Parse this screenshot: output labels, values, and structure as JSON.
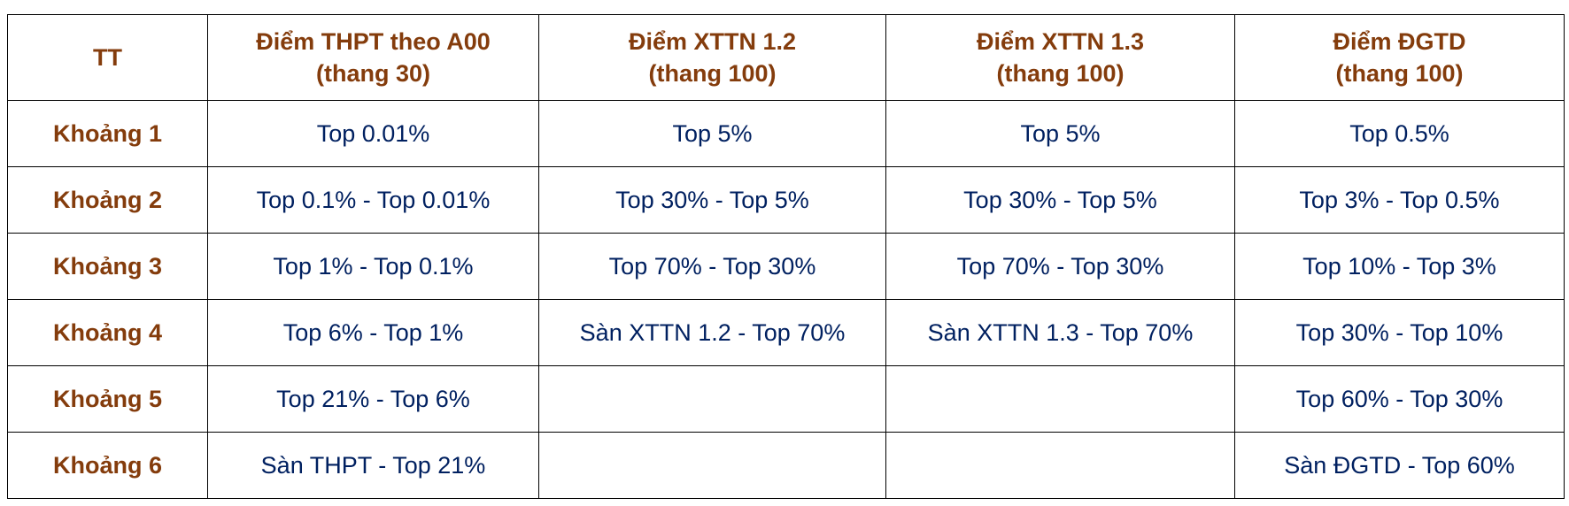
{
  "colors": {
    "header_text": "#843C0C",
    "body_text": "#002060",
    "border": "#000000"
  },
  "headers": [
    {
      "line1": "TT",
      "line2": ""
    },
    {
      "line1": "Điểm THPT theo A00",
      "line2": "(thang 30)"
    },
    {
      "line1": "Điểm XTTN 1.2",
      "line2": "(thang 100)"
    },
    {
      "line1": "Điểm XTTN 1.3",
      "line2": "(thang 100)"
    },
    {
      "line1": "Điểm ĐGTD",
      "line2": "(thang 100)"
    }
  ],
  "rows": [
    [
      "Khoảng 1",
      "Top 0.01%",
      "Top 5%",
      "Top 5%",
      "Top 0.5%"
    ],
    [
      "Khoảng 2",
      "Top 0.1% - Top 0.01%",
      "Top 30% - Top 5%",
      "Top 30% - Top 5%",
      "Top 3% - Top 0.5%"
    ],
    [
      "Khoảng 3",
      "Top 1% - Top 0.1%",
      "Top 70% - Top 30%",
      "Top 70% - Top 30%",
      "Top 10% - Top 3%"
    ],
    [
      "Khoảng 4",
      "Top 6% - Top 1%",
      "Sàn XTTN 1.2  - Top 70%",
      "Sàn XTTN 1.3  - Top 70%",
      "Top 30% - Top 10%"
    ],
    [
      "Khoảng 5",
      "Top 21% - Top 6%",
      "",
      "",
      "Top 60% - Top 30%"
    ],
    [
      "Khoảng 6",
      "Sàn THPT - Top 21%",
      "",
      "",
      "Sàn ĐGTD -  Top 60%"
    ]
  ]
}
